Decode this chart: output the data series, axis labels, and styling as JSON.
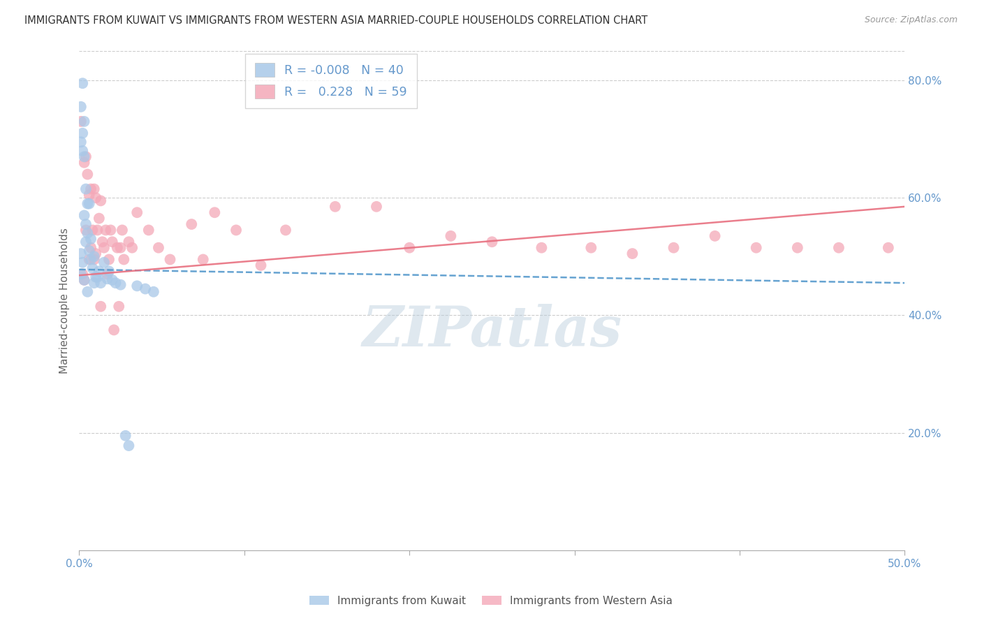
{
  "title": "IMMIGRANTS FROM KUWAIT VS IMMIGRANTS FROM WESTERN ASIA MARRIED-COUPLE HOUSEHOLDS CORRELATION CHART",
  "source": "Source: ZipAtlas.com",
  "ylabel": "Married-couple Households",
  "kuwait_color": "#a8c8e8",
  "western_asia_color": "#f4a8b8",
  "kuwait_line_color": "#5599cc",
  "western_asia_line_color": "#e87080",
  "background_color": "#ffffff",
  "grid_color": "#cccccc",
  "axis_color": "#6699cc",
  "watermark": "ZIPatlas",
  "kuwait_R": -0.008,
  "kuwait_N": 40,
  "western_asia_R": 0.228,
  "western_asia_N": 59,
  "xlim": [
    0.0,
    0.5
  ],
  "ylim": [
    0.0,
    0.85
  ],
  "y_ticks_right": [
    0.2,
    0.4,
    0.6,
    0.8
  ],
  "y_ticks_labels": [
    "20.0%",
    "40.0%",
    "60.0%",
    "80.0%"
  ],
  "kuwait_points_x": [
    0.002,
    0.001,
    0.003,
    0.002,
    0.001,
    0.002,
    0.003,
    0.001,
    0.002,
    0.001,
    0.004,
    0.005,
    0.003,
    0.004,
    0.005,
    0.004,
    0.003,
    0.005,
    0.006,
    0.007,
    0.006,
    0.007,
    0.008,
    0.009,
    0.01,
    0.009,
    0.012,
    0.011,
    0.013,
    0.015,
    0.018,
    0.017,
    0.02,
    0.022,
    0.025,
    0.028,
    0.03,
    0.035,
    0.04,
    0.045
  ],
  "kuwait_points_y": [
    0.795,
    0.755,
    0.73,
    0.71,
    0.695,
    0.68,
    0.67,
    0.505,
    0.49,
    0.47,
    0.615,
    0.59,
    0.57,
    0.555,
    0.54,
    0.525,
    0.46,
    0.44,
    0.59,
    0.53,
    0.51,
    0.495,
    0.48,
    0.5,
    0.465,
    0.455,
    0.475,
    0.465,
    0.455,
    0.49,
    0.475,
    0.462,
    0.46,
    0.455,
    0.452,
    0.195,
    0.178,
    0.45,
    0.445,
    0.44
  ],
  "western_asia_points_x": [
    0.001,
    0.002,
    0.004,
    0.003,
    0.005,
    0.004,
    0.003,
    0.007,
    0.006,
    0.008,
    0.007,
    0.006,
    0.009,
    0.01,
    0.011,
    0.01,
    0.009,
    0.013,
    0.012,
    0.014,
    0.013,
    0.016,
    0.015,
    0.017,
    0.019,
    0.02,
    0.018,
    0.021,
    0.023,
    0.024,
    0.026,
    0.025,
    0.027,
    0.03,
    0.032,
    0.035,
    0.042,
    0.048,
    0.055,
    0.068,
    0.075,
    0.082,
    0.095,
    0.11,
    0.125,
    0.155,
    0.18,
    0.2,
    0.225,
    0.25,
    0.28,
    0.31,
    0.335,
    0.36,
    0.385,
    0.41,
    0.435,
    0.46,
    0.49
  ],
  "western_asia_points_y": [
    0.73,
    0.47,
    0.67,
    0.66,
    0.64,
    0.545,
    0.46,
    0.615,
    0.605,
    0.545,
    0.515,
    0.495,
    0.615,
    0.6,
    0.545,
    0.505,
    0.495,
    0.595,
    0.565,
    0.525,
    0.415,
    0.545,
    0.515,
    0.47,
    0.545,
    0.525,
    0.495,
    0.375,
    0.515,
    0.415,
    0.545,
    0.515,
    0.495,
    0.525,
    0.515,
    0.575,
    0.545,
    0.515,
    0.495,
    0.555,
    0.495,
    0.575,
    0.545,
    0.485,
    0.545,
    0.585,
    0.585,
    0.515,
    0.535,
    0.525,
    0.515,
    0.515,
    0.505,
    0.515,
    0.535,
    0.515,
    0.515,
    0.515,
    0.515
  ],
  "kuwait_line_x": [
    0.0,
    0.5
  ],
  "kuwait_line_y": [
    0.478,
    0.455
  ],
  "western_asia_line_x": [
    0.0,
    0.5
  ],
  "western_asia_line_y": [
    0.468,
    0.585
  ]
}
